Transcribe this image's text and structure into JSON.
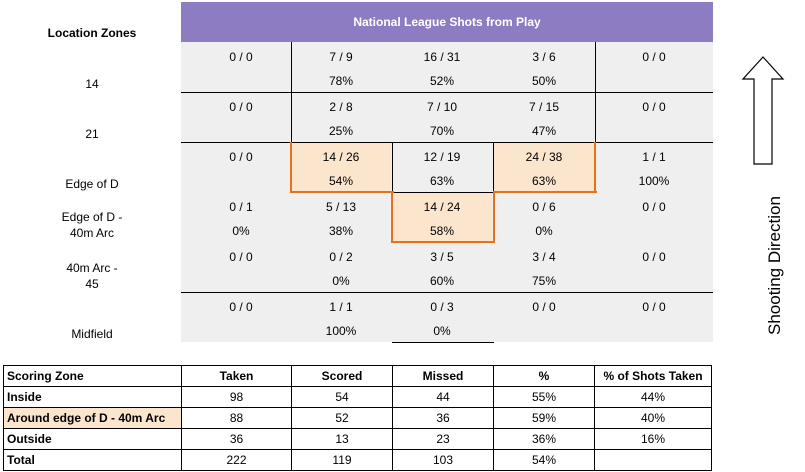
{
  "title": "National League Shots from Play",
  "location_zones_header": "Location Zones",
  "zone_labels": [
    "14",
    "21",
    "Edge of D",
    "Edge of D -\n40m Arc",
    "40m Arc -\n45",
    "Midfield"
  ],
  "grid": [
    [
      {
        "top": "0 / 0",
        "bot": ""
      },
      {
        "top": "7 / 9",
        "bot": "78%"
      },
      {
        "top": "16 / 31",
        "bot": "52%"
      },
      {
        "top": "3 / 6",
        "bot": "50%"
      },
      {
        "top": "0 / 0",
        "bot": ""
      }
    ],
    [
      {
        "top": "0 / 0",
        "bot": ""
      },
      {
        "top": "2 / 8",
        "bot": "25%"
      },
      {
        "top": "7 / 10",
        "bot": "70%"
      },
      {
        "top": "7 / 15",
        "bot": "47%"
      },
      {
        "top": "0 / 0",
        "bot": ""
      }
    ],
    [
      {
        "top": "0 / 0",
        "bot": ""
      },
      {
        "top": "14 / 26",
        "bot": "54%"
      },
      {
        "top": "12 / 19",
        "bot": "63%"
      },
      {
        "top": "24 / 38",
        "bot": "63%"
      },
      {
        "top": "1 / 1",
        "bot": "100%"
      }
    ],
    [
      {
        "top": "0 / 1",
        "bot": "0%"
      },
      {
        "top": "5 / 13",
        "bot": "38%"
      },
      {
        "top": "14 / 24",
        "bot": "58%"
      },
      {
        "top": "0 / 6",
        "bot": "0%"
      },
      {
        "top": "0 / 0",
        "bot": ""
      }
    ],
    [
      {
        "top": "0 / 0",
        "bot": ""
      },
      {
        "top": "0 / 2",
        "bot": "0%"
      },
      {
        "top": "3 / 5",
        "bot": "60%"
      },
      {
        "top": "3 / 4",
        "bot": "75%"
      },
      {
        "top": "0 / 0",
        "bot": ""
      }
    ],
    [
      {
        "top": "0 / 0",
        "bot": ""
      },
      {
        "top": "1 / 1",
        "bot": "100%"
      },
      {
        "top": "0 / 3",
        "bot": "0%"
      },
      {
        "top": "0 / 0",
        "bot": ""
      },
      {
        "top": "0 / 0",
        "bot": ""
      }
    ]
  ],
  "shooting_direction": "Shooting Direction",
  "summary": {
    "headers": [
      "Scoring Zone",
      "Taken",
      "Scored",
      "Missed",
      "%",
      "% of Shots Taken"
    ],
    "rows": [
      [
        "Inside",
        "98",
        "54",
        "44",
        "55%",
        "44%"
      ],
      [
        "Around edge of D - 40m Arc",
        "88",
        "52",
        "36",
        "59%",
        "40%"
      ],
      [
        "Outside",
        "36",
        "13",
        "23",
        "36%",
        "16%"
      ],
      [
        "Total",
        "222",
        "119",
        "103",
        "54%",
        ""
      ]
    ]
  },
  "colors": {
    "title_bg": "#8e7cc3",
    "grid_bg": "#efefef",
    "highlight": "#fce5cd",
    "orange": "#e8711c"
  }
}
